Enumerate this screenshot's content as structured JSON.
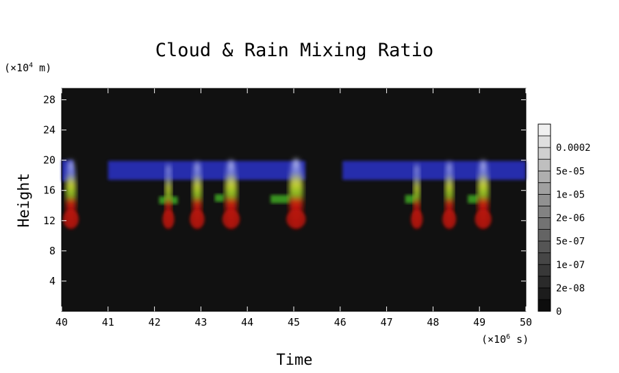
{
  "chart_data": {
    "type": "heatmap",
    "title": "Cloud & Rain Mixing Ratio",
    "xlabel": "Time",
    "ylabel": "Height",
    "x_units_base": "×10",
    "x_units_exp": "6",
    "x_units_suffix": " s",
    "y_units_base": "×10",
    "y_units_exp": "4",
    "y_units_suffix": " m",
    "xlim": [
      40,
      50
    ],
    "ylim": [
      0,
      29.5
    ],
    "x_ticks": [
      40,
      41,
      42,
      43,
      44,
      45,
      46,
      47,
      48,
      49,
      50
    ],
    "y_ticks": [
      4,
      8,
      12,
      16,
      20,
      24,
      28
    ],
    "background": "#111111",
    "colorbar": {
      "ticks": [
        "0",
        "2e-08",
        "1e-07",
        "5e-07",
        "2e-06",
        "1e-05",
        "5e-05",
        "0.0002"
      ],
      "colors": [
        "#0d0d0d",
        "#1c1c1c",
        "#2a2a2a",
        "#383838",
        "#464646",
        "#555555",
        "#646464",
        "#737373",
        "#828282",
        "#919191",
        "#a0a0a0",
        "#afafaf",
        "#bfbfbf",
        "#cfcfcf",
        "#dfdfdf",
        "#f0f0f0"
      ]
    },
    "series": [
      {
        "color": "#2b30c8",
        "bands": [
          {
            "x0": 40.0,
            "x1": 40.25,
            "y0": 17.2,
            "y1": 20.0
          },
          {
            "x0": 41.0,
            "x1": 45.25,
            "y0": 17.4,
            "y1": 19.9
          },
          {
            "x0": 46.05,
            "x1": 50.0,
            "y0": 17.4,
            "y1": 19.9
          }
        ]
      },
      {
        "color": "#3ca020",
        "bands": [
          {
            "x0": 42.1,
            "x1": 42.5,
            "y0": 14.2,
            "y1": 15.2
          },
          {
            "x0": 43.3,
            "x1": 43.5,
            "y0": 14.5,
            "y1": 15.5
          },
          {
            "x0": 44.5,
            "x1": 44.95,
            "y0": 14.3,
            "y1": 15.4
          },
          {
            "x0": 47.4,
            "x1": 47.65,
            "y0": 14.3,
            "y1": 15.4
          },
          {
            "x0": 48.75,
            "x1": 49.0,
            "y0": 14.3,
            "y1": 15.4
          }
        ]
      }
    ],
    "columns": [
      {
        "x": 40.2,
        "w": 0.22,
        "top": 20.0
      },
      {
        "x": 42.3,
        "w": 0.14,
        "top": 19.5
      },
      {
        "x": 42.92,
        "w": 0.2,
        "top": 19.8
      },
      {
        "x": 43.65,
        "w": 0.26,
        "top": 20.0
      },
      {
        "x": 45.05,
        "w": 0.3,
        "top": 20.2
      },
      {
        "x": 47.65,
        "w": 0.14,
        "top": 19.5
      },
      {
        "x": 48.35,
        "w": 0.18,
        "top": 19.8
      },
      {
        "x": 49.08,
        "w": 0.24,
        "top": 20.0
      }
    ]
  }
}
